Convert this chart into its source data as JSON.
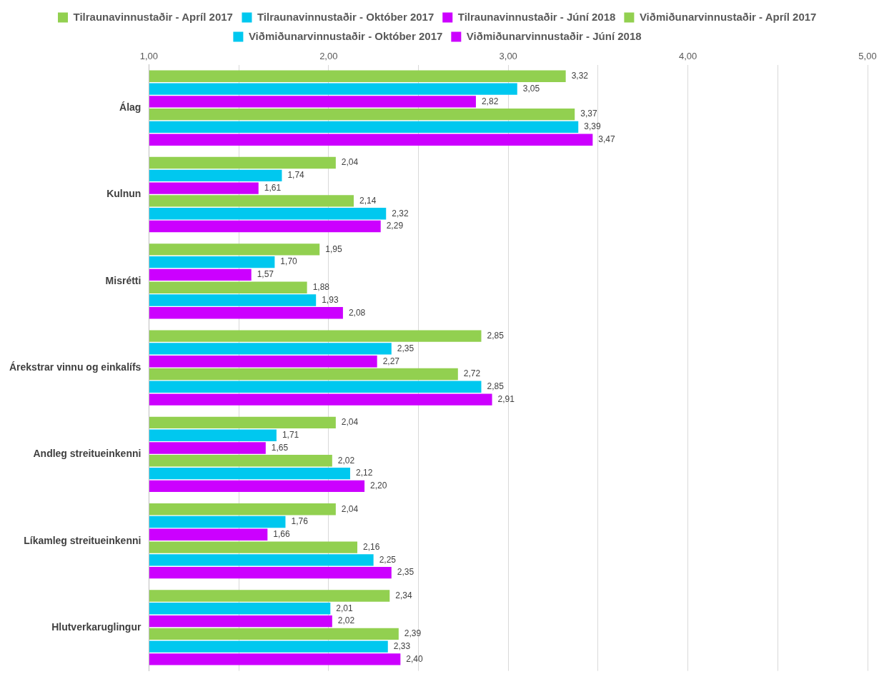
{
  "chart_data": {
    "type": "bar",
    "orientation": "horizontal",
    "categories": [
      "Álag",
      "Kulnun",
      "Misrétti",
      "Árekstrar vinnu og einkalífs",
      "Andleg streitueinkenni",
      "Líkamleg streitueinkenni",
      "Hlutverkaruglingur"
    ],
    "series": [
      {
        "name": "Tilraunavinnustaðir - Apríl 2017",
        "color": "#92d050",
        "values": [
          3.32,
          2.04,
          1.95,
          2.85,
          2.04,
          2.04,
          2.34
        ],
        "value_labels": [
          "3,32",
          "2,04",
          "1,95",
          "2,85",
          "2,04",
          "2,04",
          "2,34"
        ]
      },
      {
        "name": "Tilraunavinnustaðir - Október 2017",
        "color": "#00c8ef",
        "values": [
          3.05,
          1.74,
          1.7,
          2.35,
          1.71,
          1.76,
          2.01
        ],
        "value_labels": [
          "3,05",
          "1,74",
          "1,70",
          "2,35",
          "1,71",
          "1,76",
          "2,01"
        ]
      },
      {
        "name": "Tilraunavinnustaðir - Júní 2018",
        "color": "#cc00ff",
        "values": [
          2.82,
          1.61,
          1.57,
          2.27,
          1.65,
          1.66,
          2.02
        ],
        "value_labels": [
          "2,82",
          "1,61",
          "1,57",
          "2,27",
          "1,65",
          "1,66",
          "2,02"
        ]
      },
      {
        "name": "Viðmiðunarvinnustaðir - Apríl 2017",
        "color": "#92d050",
        "values": [
          3.37,
          2.14,
          1.88,
          2.72,
          2.02,
          2.16,
          2.39
        ],
        "value_labels": [
          "3,37",
          "2,14",
          "1,88",
          "2,72",
          "2,02",
          "2,16",
          "2,39"
        ]
      },
      {
        "name": "Viðmiðunarvinnustaðir - Október 2017",
        "color": "#00c8ef",
        "values": [
          3.39,
          2.32,
          1.93,
          2.85,
          2.12,
          2.25,
          2.33
        ],
        "value_labels": [
          "3,39",
          "2,32",
          "1,93",
          "2,85",
          "2,12",
          "2,25",
          "2,33"
        ]
      },
      {
        "name": "Viðmiðunarvinnustaðir - Júní 2018",
        "color": "#cc00ff",
        "values": [
          3.47,
          2.29,
          2.08,
          2.91,
          2.2,
          2.35,
          2.4
        ],
        "value_labels": [
          "3,47",
          "2,29",
          "2,08",
          "2,91",
          "2,20",
          "2,35",
          "2,40"
        ]
      }
    ],
    "xlim": [
      1,
      5
    ],
    "xticks": [
      {
        "value": 1,
        "label": "1,00"
      },
      {
        "value": 1.5,
        "label": null
      },
      {
        "value": 2,
        "label": "2,00"
      },
      {
        "value": 2.5,
        "label": null
      },
      {
        "value": 3,
        "label": "3,00"
      },
      {
        "value": 3.5,
        "label": null
      },
      {
        "value": 4,
        "label": "4,00"
      },
      {
        "value": 4.5,
        "label": null
      },
      {
        "value": 5,
        "label": "5,00"
      }
    ],
    "grid": "x",
    "legend": "top"
  }
}
